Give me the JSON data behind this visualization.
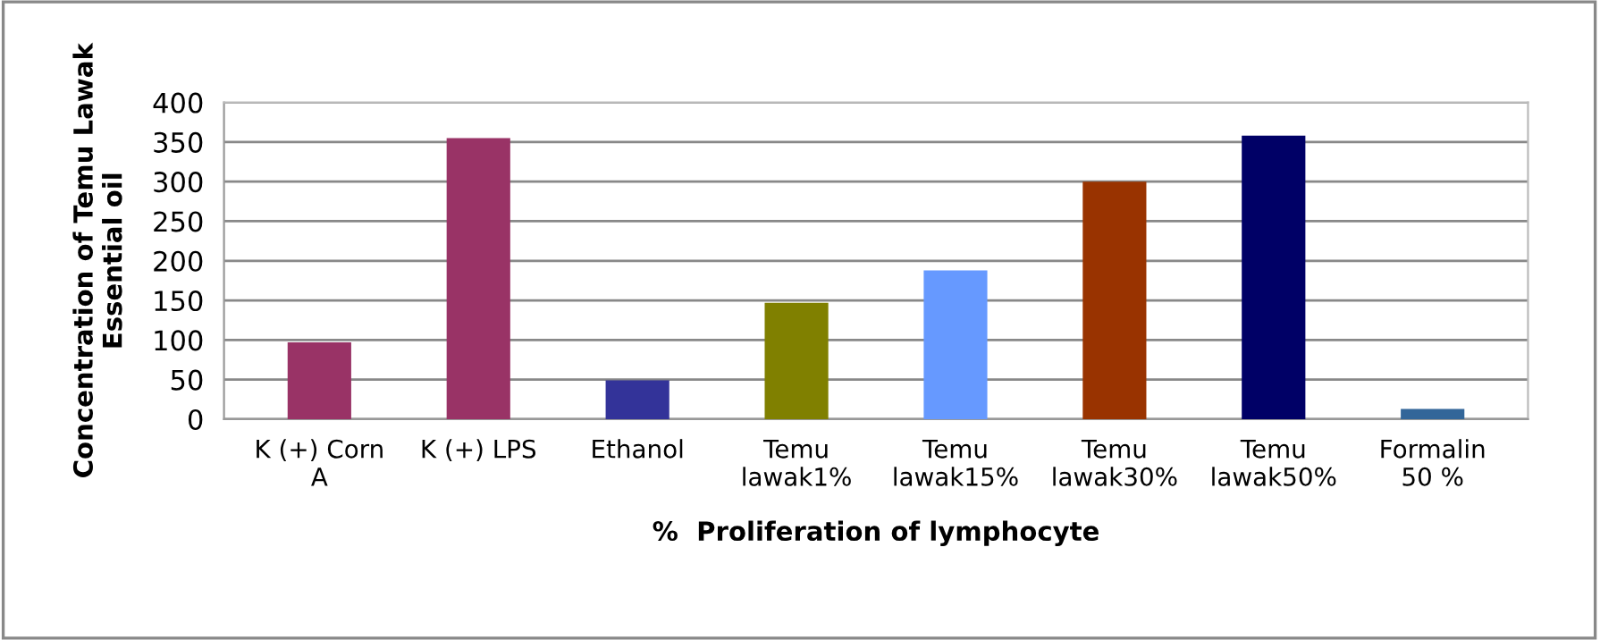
{
  "chart_data": {
    "type": "bar",
    "categories": [
      "K (+) Corn\nA",
      "K (+) LPS",
      "Ethanol",
      "Temu\nlawak1%",
      "Temu\nlawak15%",
      "Temu\nlawak30%",
      "Temu\nlawak50%",
      "Formalin\n50 %"
    ],
    "values": [
      97,
      355,
      49,
      147,
      188,
      300,
      358,
      13
    ],
    "colors": [
      "#993366",
      "#993366",
      "#333399",
      "#808000",
      "#6699ff",
      "#993300",
      "#000066",
      "#336699"
    ],
    "xlabel": "%  Proliferation of lymphocyte",
    "ylabel": "Concentration of Temu Lawak\nEssential oil",
    "ylim": [
      0,
      400
    ],
    "yticks": [
      0,
      50,
      100,
      150,
      200,
      250,
      300,
      350,
      400
    ],
    "grid": "y",
    "legend": false
  }
}
